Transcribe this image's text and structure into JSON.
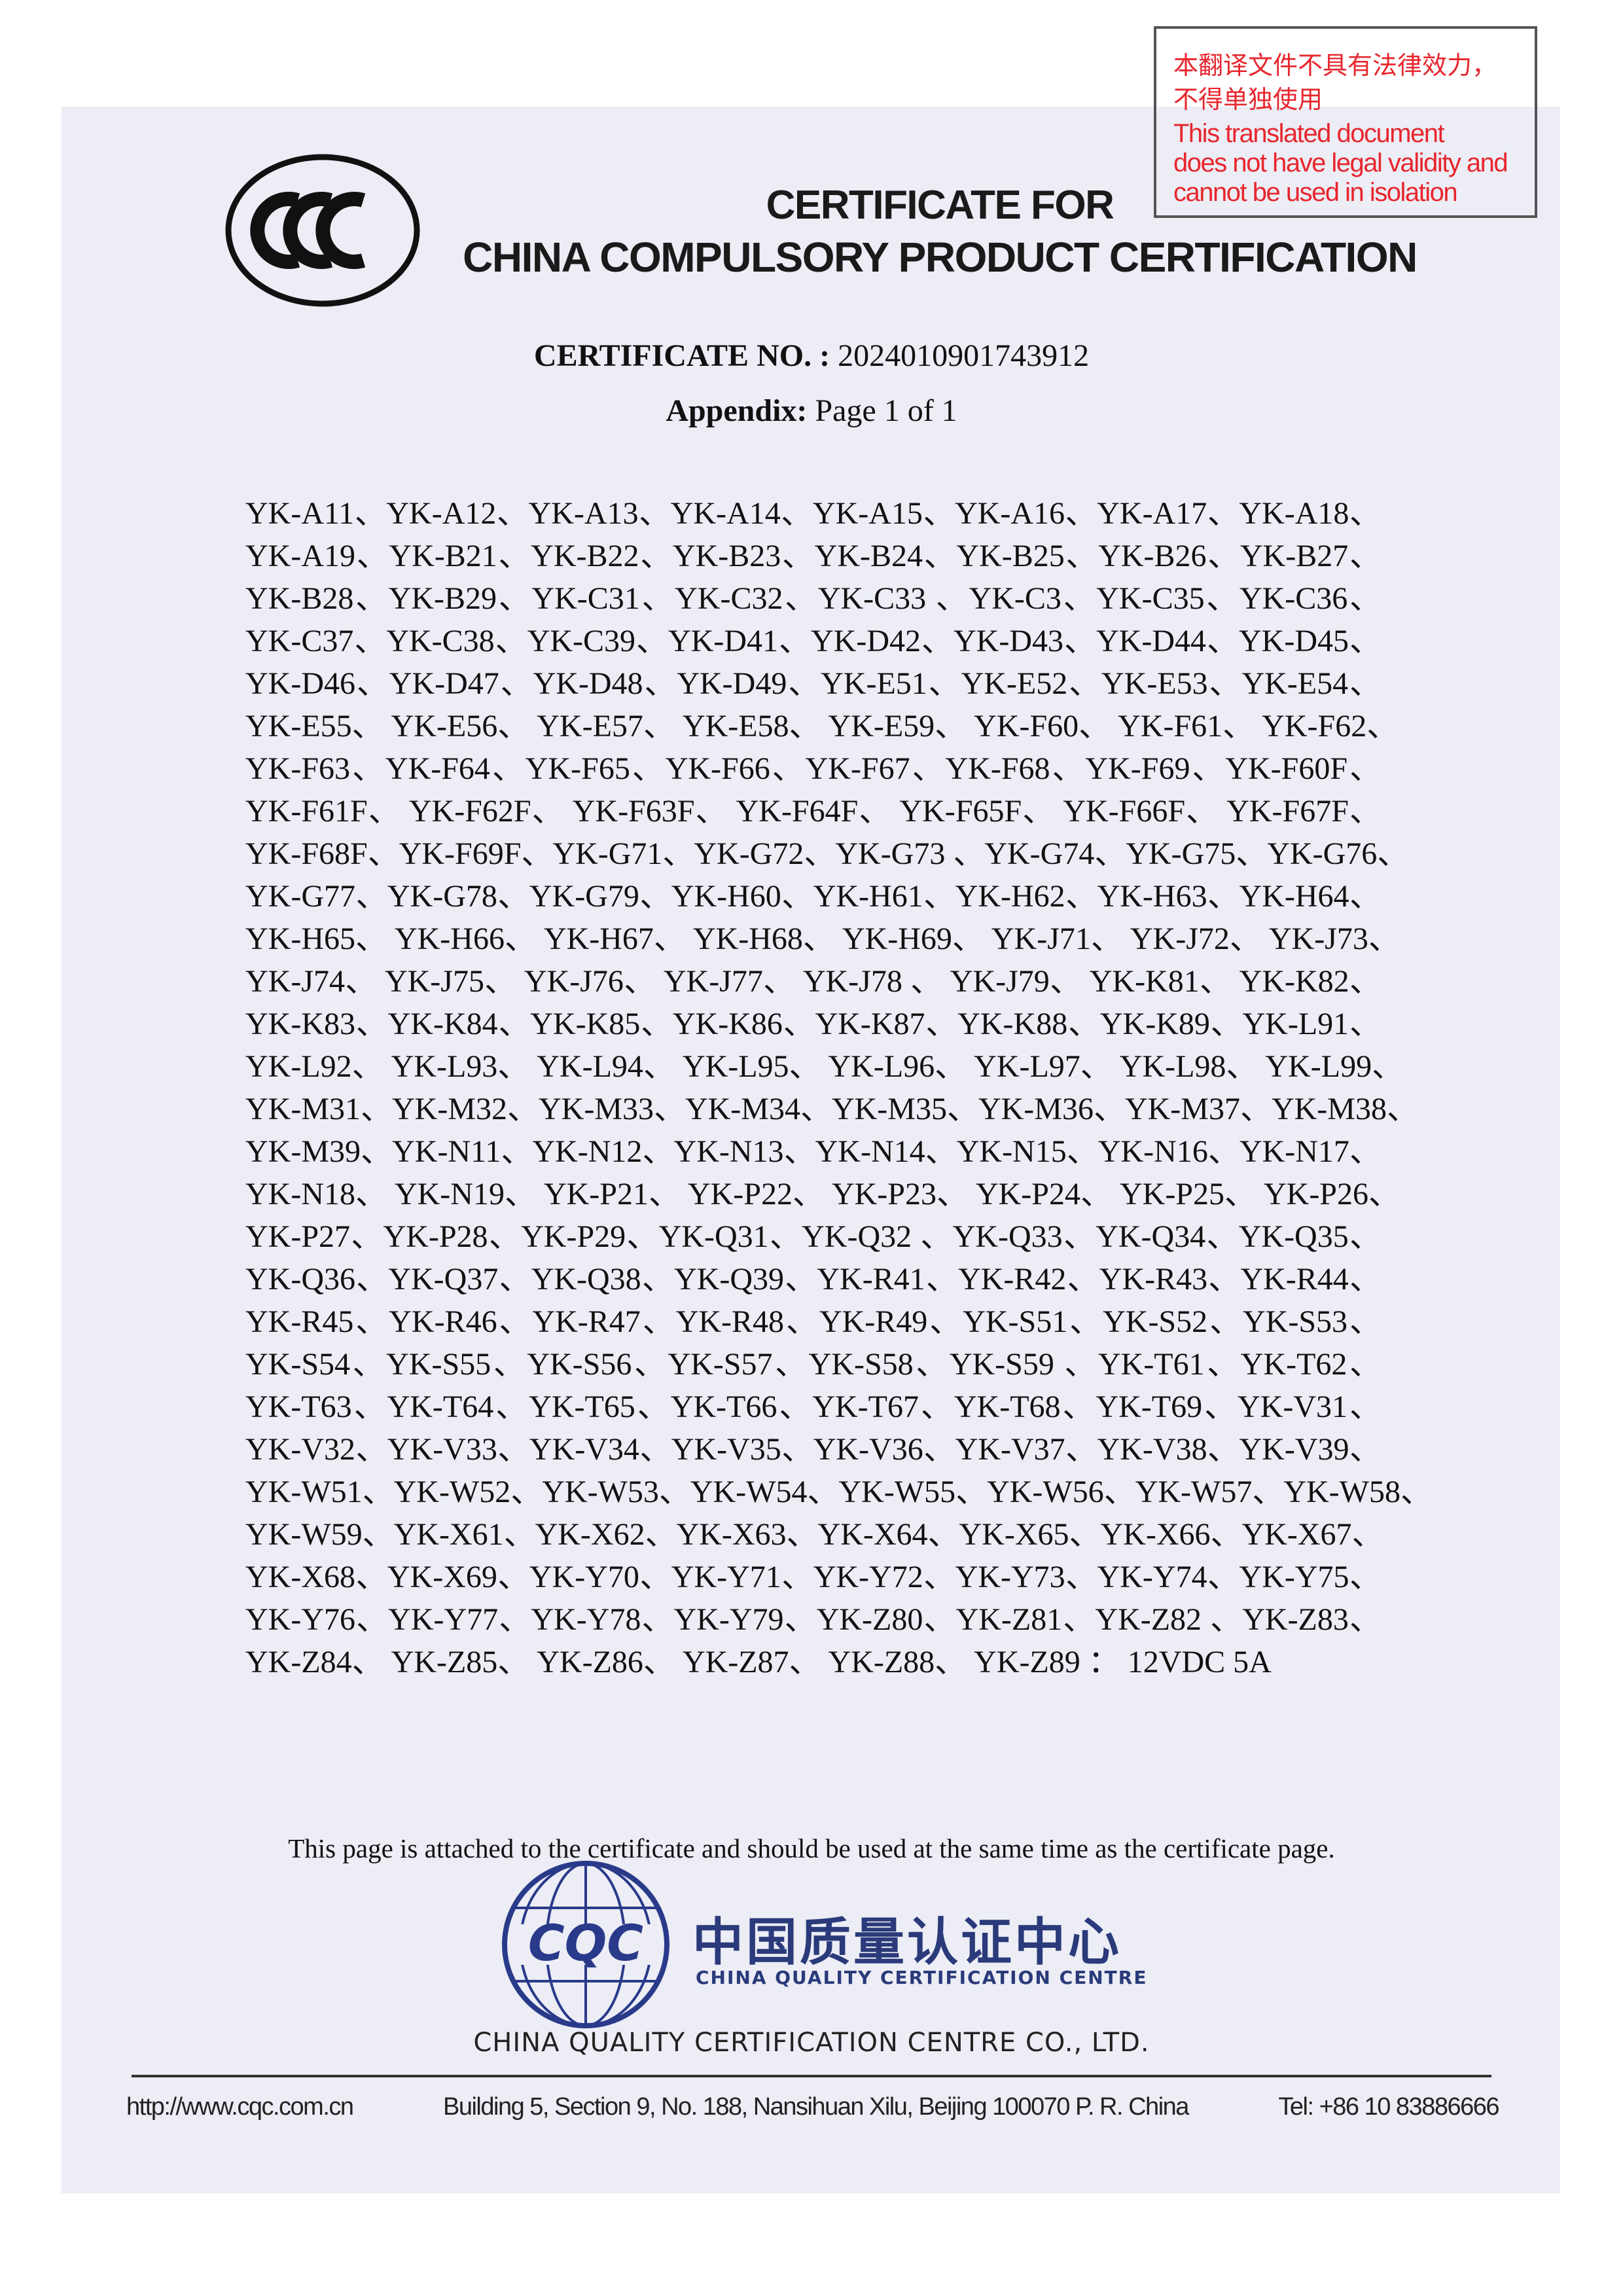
{
  "notice": {
    "cn_line1": "本翻译文件不具有法律效力，",
    "cn_line2": "不得单独使用",
    "en_line1": "This translated document",
    "en_line2": "does not have legal validity and",
    "en_line3": "cannot be used in isolation",
    "color": "#e8262e"
  },
  "header": {
    "logo_text": "CCC",
    "title_line1": "CERTIFICATE FOR",
    "title_line2": "CHINA COMPULSORY PRODUCT CERTIFICATION",
    "cert_no_label": "CERTIFICATE NO. :",
    "cert_no_value": "2024010901743912",
    "appendix_label": "Appendix:",
    "appendix_value": "Page 1 of 1"
  },
  "models": [
    "YK-A11、YK-A12、YK-A13、YK-A14、YK-A15、YK-A16、YK-A17、YK-A18、",
    "YK-A19、YK-B21、YK-B22、YK-B23、YK-B24、YK-B25、YK-B26、YK-B27、",
    "YK-B28、YK-B29、YK-C31、YK-C32、YK-C33 、YK-C3、YK-C35、YK-C36、",
    "YK-C37、YK-C38、YK-C39、YK-D41、YK-D42、YK-D43、YK-D44、YK-D45、",
    "YK-D46、YK-D47、YK-D48、YK-D49、YK-E51、YK-E52、YK-E53、YK-E54、",
    "YK-E55、 YK-E56、 YK-E57、 YK-E58、 YK-E59、 YK-F60、 YK-F61、 YK-F62、",
    "YK-F63、YK-F64、YK-F65、YK-F66、YK-F67、YK-F68、YK-F69、YK-F60F、",
    "YK-F61F、 YK-F62F、 YK-F63F、 YK-F64F、 YK-F65F、 YK-F66F、 YK-F67F、",
    "YK-F68F、YK-F69F、YK-G71、YK-G72、YK-G73 、YK-G74、YK-G75、YK-G76、",
    "YK-G77、YK-G78、YK-G79、YK-H60、YK-H61、YK-H62、YK-H63、YK-H64、",
    "YK-H65、 YK-H66、 YK-H67、 YK-H68、 YK-H69、 YK-J71、 YK-J72、 YK-J73、",
    "YK-J74、 YK-J75、 YK-J76、 YK-J77、 YK-J78 、 YK-J79、 YK-K81、 YK-K82、",
    "YK-K83、YK-K84、YK-K85、YK-K86、YK-K87、YK-K88、YK-K89、YK-L91、",
    "YK-L92、 YK-L93、 YK-L94、 YK-L95、 YK-L96、 YK-L97、 YK-L98、 YK-L99、",
    "YK-M31、YK-M32、YK-M33、YK-M34、YK-M35、YK-M36、YK-M37、YK-M38、",
    "YK-M39、YK-N11、YK-N12、YK-N13、YK-N14、YK-N15、YK-N16、YK-N17、",
    "YK-N18、 YK-N19、 YK-P21、 YK-P22、 YK-P23、 YK-P24、 YK-P25、 YK-P26、",
    "YK-P27、YK-P28、YK-P29、YK-Q31、YK-Q32 、YK-Q33、YK-Q34、YK-Q35、",
    "YK-Q36、YK-Q37、YK-Q38、YK-Q39、YK-R41、YK-R42、YK-R43、YK-R44、",
    "YK-R45、YK-R46、YK-R47、YK-R48、YK-R49、YK-S51、YK-S52、YK-S53、",
    "YK-S54、YK-S55、YK-S56、YK-S57、YK-S58、YK-S59 、YK-T61、YK-T62、",
    "YK-T63、YK-T64、YK-T65、YK-T66、YK-T67、YK-T68、YK-T69、YK-V31、",
    "YK-V32、YK-V33、YK-V34、YK-V35、YK-V36、YK-V37、YK-V38、YK-V39、",
    "YK-W51、YK-W52、YK-W53、YK-W54、YK-W55、YK-W56、YK-W57、YK-W58、",
    "YK-W59、YK-X61、YK-X62、YK-X63、YK-X64、YK-X65、YK-X66、YK-X67、",
    "YK-X68、YK-X69、YK-Y70、YK-Y71、YK-Y72、YK-Y73、YK-Y74、YK-Y75、",
    "YK-Y76、YK-Y77、YK-Y78、YK-Y79、YK-Z80、YK-Z81、YK-Z82 、YK-Z83、",
    "YK-Z84、 YK-Z85、 YK-Z86、 YK-Z87、 YK-Z88、 YK-Z89 ： 12VDC 5A"
  ],
  "footer": {
    "attached_note": "This page is attached to the certificate and should be used at the same time as the certificate page.",
    "cqc_logo_text": "CQC",
    "cqc_cn": "中国质量认证中心",
    "cqc_en": "CHINA QUALITY CERTIFICATION CENTRE",
    "company": "CHINA QUALITY CERTIFICATION CENTRE CO., LTD.",
    "website": "http://www.cqc.com.cn",
    "address": "Building 5, Section 9, No. 188, Nansihuan Xilu, Beijing 100070 P. R. China",
    "tel": "Tel: +86 10 83886666",
    "brand_color": "#2a3a8a"
  }
}
